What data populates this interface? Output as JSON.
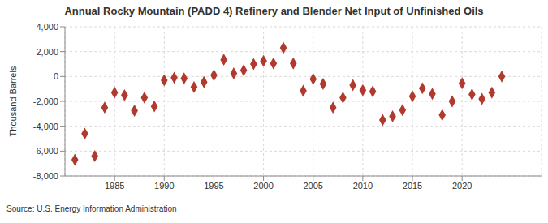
{
  "chart_data": {
    "type": "scatter",
    "title": "Annual Rocky Mountain (PADD 4) Refinery and Blender Net Input of Unfinished Oils",
    "y_label": "Thousand Barrels",
    "source": "Source: U.S. Energy Information Administration",
    "x": [
      1981,
      1982,
      1983,
      1984,
      1985,
      1986,
      1987,
      1988,
      1989,
      1990,
      1991,
      1992,
      1993,
      1994,
      1995,
      1996,
      1997,
      1998,
      1999,
      2000,
      2001,
      2002,
      2003,
      2004,
      2005,
      2006,
      2007,
      2008,
      2009,
      2010,
      2011,
      2012,
      2013,
      2014,
      2015,
      2016,
      2017,
      2018,
      2019,
      2020,
      2021,
      2022,
      2023,
      2024
    ],
    "values": [
      -6700,
      -4600,
      -6400,
      -2500,
      -1300,
      -1500,
      -2750,
      -1700,
      -2400,
      -300,
      -100,
      -150,
      -850,
      -450,
      100,
      1350,
      250,
      500,
      1000,
      1250,
      1050,
      2300,
      1050,
      -1150,
      -200,
      -600,
      -2500,
      -1700,
      -700,
      -1100,
      -1200,
      -3500,
      -3200,
      -2700,
      -1600,
      -950,
      -1400,
      -3100,
      -2000,
      -550,
      -1450,
      -1800,
      -1300,
      0
    ],
    "color": "#b03a2e",
    "marker": "diamond",
    "xlim": [
      1980,
      2028
    ],
    "xticks": [
      1985,
      1990,
      1995,
      2000,
      2005,
      2010,
      2015,
      2020
    ],
    "ylim": [
      -8000,
      4000
    ],
    "yticks": [
      {
        "value": -8000,
        "label": "-8,000"
      },
      {
        "value": -6000,
        "label": "-6,000"
      },
      {
        "value": -4000,
        "label": "-4,000"
      },
      {
        "value": -2000,
        "label": "-2,000"
      },
      0,
      {
        "value": 2000,
        "label": "2,000"
      },
      {
        "value": 4000,
        "label": "4,000"
      }
    ],
    "grid": true
  }
}
